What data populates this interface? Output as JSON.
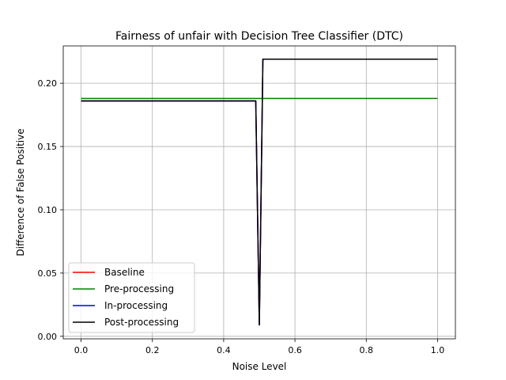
{
  "chart_data": {
    "type": "line",
    "title": "Fairness of unfair with Decision Tree Classifier (DTC)",
    "xlabel": "Noise Level",
    "ylabel": "Difference of False Positive",
    "xlim": [
      -0.05,
      1.05
    ],
    "ylim": [
      -0.002,
      0.2295
    ],
    "xticks": [
      0.0,
      0.2,
      0.4,
      0.6,
      0.8,
      1.0
    ],
    "xtick_labels": [
      "0.0",
      "0.2",
      "0.4",
      "0.6",
      "0.8",
      "1.0"
    ],
    "yticks": [
      0.0,
      0.05,
      0.1,
      0.15,
      0.2
    ],
    "ytick_labels": [
      "0.00",
      "0.05",
      "0.10",
      "0.15",
      "0.20"
    ],
    "grid": true,
    "legend_position": "lower-left",
    "series": [
      {
        "name": "Baseline",
        "color": "#ff0000",
        "x": [
          0.0,
          0.49,
          0.5,
          0.51,
          1.0
        ],
        "y": [
          0.186,
          0.186,
          0.009,
          0.219,
          0.219
        ]
      },
      {
        "name": "Pre-processing",
        "color": "#008000",
        "x": [
          0.0,
          1.0
        ],
        "y": [
          0.188,
          0.188
        ]
      },
      {
        "name": "In-processing",
        "color": "#0000ff",
        "x": [
          0.0,
          0.49,
          0.5,
          0.51,
          1.0
        ],
        "y": [
          0.186,
          0.186,
          0.009,
          0.219,
          0.219
        ]
      },
      {
        "name": "Post-processing",
        "color": "#000000",
        "x": [
          0.0,
          0.49,
          0.5,
          0.51,
          1.0
        ],
        "y": [
          0.186,
          0.186,
          0.009,
          0.219,
          0.219
        ]
      }
    ]
  }
}
